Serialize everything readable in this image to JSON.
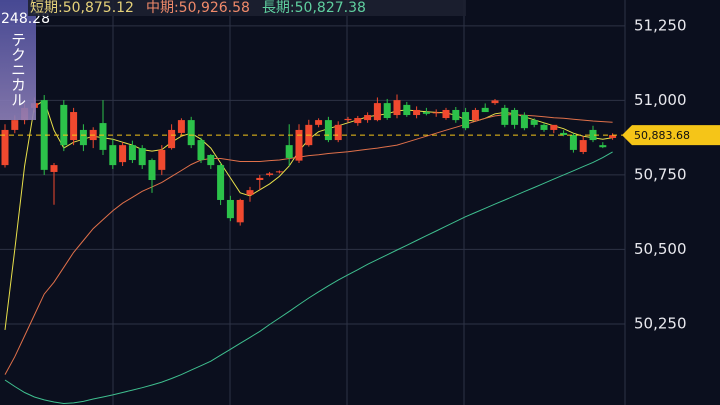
{
  "chart_data": {
    "type": "candlestick",
    "ohlc": [
      [
        50783,
        50920,
        50775,
        50901
      ],
      [
        50901,
        50950,
        50890,
        50934
      ],
      [
        50934,
        50990,
        50920,
        50975
      ],
      [
        50975,
        51010,
        50960,
        50991
      ],
      [
        51001,
        51018,
        50750,
        50767
      ],
      [
        50760,
        50790,
        50650,
        50783
      ],
      [
        50985,
        51001,
        50830,
        50850
      ],
      [
        50867,
        50975,
        50850,
        50961
      ],
      [
        50901,
        50920,
        50830,
        50850
      ],
      [
        50867,
        50910,
        50840,
        50901
      ],
      [
        50924,
        51001,
        50817,
        50834
      ],
      [
        50850,
        50870,
        50770,
        50783
      ],
      [
        50793,
        50860,
        50780,
        50850
      ],
      [
        50850,
        50865,
        50790,
        50800
      ],
      [
        50840,
        50850,
        50770,
        50783
      ],
      [
        50800,
        50805,
        50690,
        50733
      ],
      [
        50767,
        50850,
        50750,
        50834
      ],
      [
        50840,
        50920,
        50835,
        50901
      ],
      [
        50891,
        50940,
        50880,
        50934
      ],
      [
        50934,
        50945,
        50840,
        50850
      ],
      [
        50867,
        50875,
        50790,
        50800
      ],
      [
        50817,
        50820,
        50770,
        50783
      ],
      [
        50783,
        50790,
        50649,
        50666
      ],
      [
        50666,
        50680,
        50595,
        50605
      ],
      [
        50591,
        50670,
        50580,
        50666
      ],
      [
        50683,
        50710,
        50660,
        50699
      ],
      [
        50733,
        50750,
        50700,
        50740
      ],
      [
        50750,
        50760,
        50745,
        50755
      ],
      [
        50760,
        50765,
        50755,
        50762
      ],
      [
        50850,
        50920,
        50780,
        50807
      ],
      [
        50798,
        50920,
        50790,
        50901
      ],
      [
        50850,
        50935,
        50845,
        50918
      ],
      [
        50918,
        50940,
        50910,
        50934
      ],
      [
        50934,
        50945,
        50860,
        50867
      ],
      [
        50867,
        50930,
        50860,
        50918
      ],
      [
        50934,
        50945,
        50925,
        50938
      ],
      [
        50924,
        50948,
        50915,
        50941
      ],
      [
        50934,
        50960,
        50925,
        50951
      ],
      [
        50934,
        51010,
        50930,
        50991
      ],
      [
        50991,
        51005,
        50935,
        50941
      ],
      [
        50951,
        51020,
        50940,
        51001
      ],
      [
        50985,
        50995,
        50945,
        50951
      ],
      [
        50951,
        50980,
        50940,
        50968
      ],
      [
        50961,
        50975,
        50950,
        50955
      ],
      [
        50958,
        50970,
        50945,
        50960
      ],
      [
        50941,
        50975,
        50935,
        50968
      ],
      [
        50968,
        50978,
        50925,
        50934
      ],
      [
        50961,
        50975,
        50900,
        50907
      ],
      [
        50934,
        50975,
        50930,
        50968
      ],
      [
        50975,
        50990,
        50965,
        50961
      ],
      [
        50991,
        51005,
        50985,
        51000
      ],
      [
        50975,
        50985,
        50910,
        50918
      ],
      [
        50968,
        50975,
        50905,
        50918
      ],
      [
        50951,
        50960,
        50900,
        50907
      ],
      [
        50934,
        50940,
        50910,
        50918
      ],
      [
        50918,
        50925,
        50895,
        50901
      ],
      [
        50901,
        50915,
        50890,
        50918
      ],
      [
        50891,
        50900,
        50880,
        50884
      ],
      [
        50884,
        50890,
        50825,
        50834
      ],
      [
        50827,
        50880,
        50820,
        50867
      ],
      [
        50901,
        50915,
        50860,
        50867
      ],
      [
        50850,
        50860,
        50840,
        50843
      ],
      [
        50874,
        50890,
        50868,
        50883.68
      ]
    ],
    "up_color": "#f0492f",
    "down_color": "#2cc24a",
    "series": [
      {
        "name": "短期:50,875.12",
        "color": "#e8e04a",
        "label_color": "#e6d27a",
        "values": [
          50230,
          50500,
          50780,
          50980,
          51000,
          50900,
          50840,
          50860,
          50870,
          50880,
          50875,
          50870,
          50860,
          50850,
          50835,
          50830,
          50835,
          50860,
          50880,
          50890,
          50870,
          50840,
          50790,
          50740,
          50690,
          50680,
          50700,
          50720,
          50745,
          50780,
          50830,
          50870,
          50895,
          50905,
          50915,
          50925,
          50935,
          50945,
          50950,
          50955,
          50965,
          50968,
          50965,
          50962,
          50960,
          50958,
          50950,
          50935,
          50930,
          50940,
          50955,
          50960,
          50955,
          50945,
          50935,
          50925,
          50915,
          50905,
          50890,
          50880,
          50875,
          50870,
          50875.12
        ]
      },
      {
        "name": "中期:50,926.58",
        "color": "#e0704a",
        "label_color": "#f08a6a",
        "values": [
          50080,
          50140,
          50210,
          50280,
          50350,
          50390,
          50440,
          50490,
          50530,
          50570,
          50600,
          50630,
          50655,
          50675,
          50695,
          50710,
          50725,
          50745,
          50765,
          50785,
          50800,
          50805,
          50805,
          50800,
          50795,
          50795,
          50795,
          50798,
          50800,
          50805,
          50810,
          50815,
          50818,
          50822,
          50825,
          50828,
          50832,
          50836,
          50840,
          50845,
          50850,
          50860,
          50870,
          50880,
          50890,
          50900,
          50910,
          50920,
          50930,
          50940,
          50948,
          50952,
          50952,
          50950,
          50948,
          50945,
          50942,
          50940,
          50937,
          50934,
          50931,
          50929,
          50926.58
        ]
      },
      {
        "name": "長期:50,827.38",
        "color": "#3fbf8f",
        "label_color": "#5fcf9f",
        "values": [
          50062,
          50040,
          50020,
          50005,
          49995,
          49988,
          49983,
          49985,
          49990,
          49998,
          50005,
          50012,
          50020,
          50028,
          50036,
          50045,
          50055,
          50067,
          50080,
          50095,
          50110,
          50125,
          50145,
          50165,
          50185,
          50205,
          50225,
          50248,
          50270,
          50292,
          50315,
          50337,
          50358,
          50378,
          50397,
          50415,
          50432,
          50450,
          50466,
          50482,
          50498,
          50514,
          50530,
          50546,
          50562,
          50578,
          50594,
          50610,
          50624,
          50638,
          50652,
          50666,
          50680,
          50694,
          50708,
          50722,
          50736,
          50750,
          50764,
          50778,
          50792,
          50808,
          50827.38
        ]
      }
    ],
    "ylim": [
      49978,
      51337
    ],
    "yticks": [
      {
        "value": 50250,
        "label": "50,250"
      },
      {
        "value": 50500,
        "label": "50,500"
      },
      {
        "value": 50750,
        "label": "50,750"
      },
      {
        "value": 51000,
        "label": "51,000"
      },
      {
        "value": 51250,
        "label": "51,250"
      }
    ],
    "last_price": {
      "value": 50883.68,
      "label": "50,883.68"
    },
    "grid": true
  },
  "overlay": {
    "value": "248.28",
    "button": "テクニカル"
  }
}
